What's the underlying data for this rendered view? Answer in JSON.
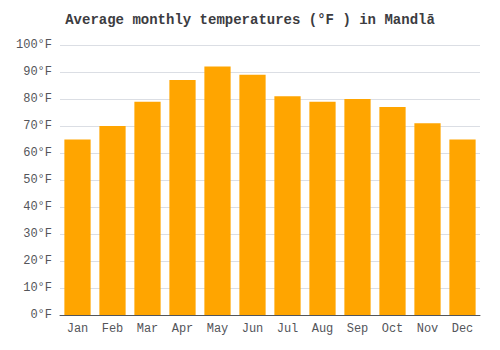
{
  "chart_data": {
    "type": "bar",
    "title": "Average monthly temperatures (°F ) in Mandlā",
    "categories": [
      "Jan",
      "Feb",
      "Mar",
      "Apr",
      "May",
      "Jun",
      "Jul",
      "Aug",
      "Sep",
      "Oct",
      "Nov",
      "Dec"
    ],
    "values": [
      65,
      70,
      79,
      87,
      92,
      89,
      81,
      79,
      80,
      77,
      71,
      65
    ],
    "color": "#FFA500",
    "ylim": [
      0,
      100
    ],
    "yticks": [
      {
        "value": 0,
        "label": "0°F"
      },
      {
        "value": 10,
        "label": "10°F"
      },
      {
        "value": 20,
        "label": "20°F"
      },
      {
        "value": 30,
        "label": "30°F"
      },
      {
        "value": 40,
        "label": "40°F"
      },
      {
        "value": 50,
        "label": "50°F"
      },
      {
        "value": 60,
        "label": "60°F"
      },
      {
        "value": 70,
        "label": "70°F"
      },
      {
        "value": 80,
        "label": "80°F"
      },
      {
        "value": 90,
        "label": "90°F"
      },
      {
        "value": 100,
        "label": "100°F"
      }
    ],
    "grid": true
  }
}
